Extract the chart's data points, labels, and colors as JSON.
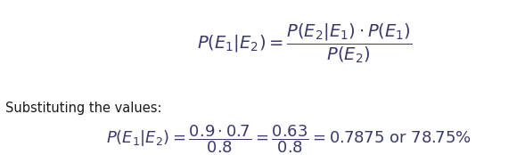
{
  "bg_color": "#ffffff",
  "formula_color": "#3a3a6a",
  "label_color": "#1a1a1a",
  "substituting_text": "Substituting the values:",
  "fig_width": 5.89,
  "fig_height": 1.74,
  "dpi": 100,
  "fs_main": 14,
  "fs_sub": 13,
  "fs_label": 10.5
}
